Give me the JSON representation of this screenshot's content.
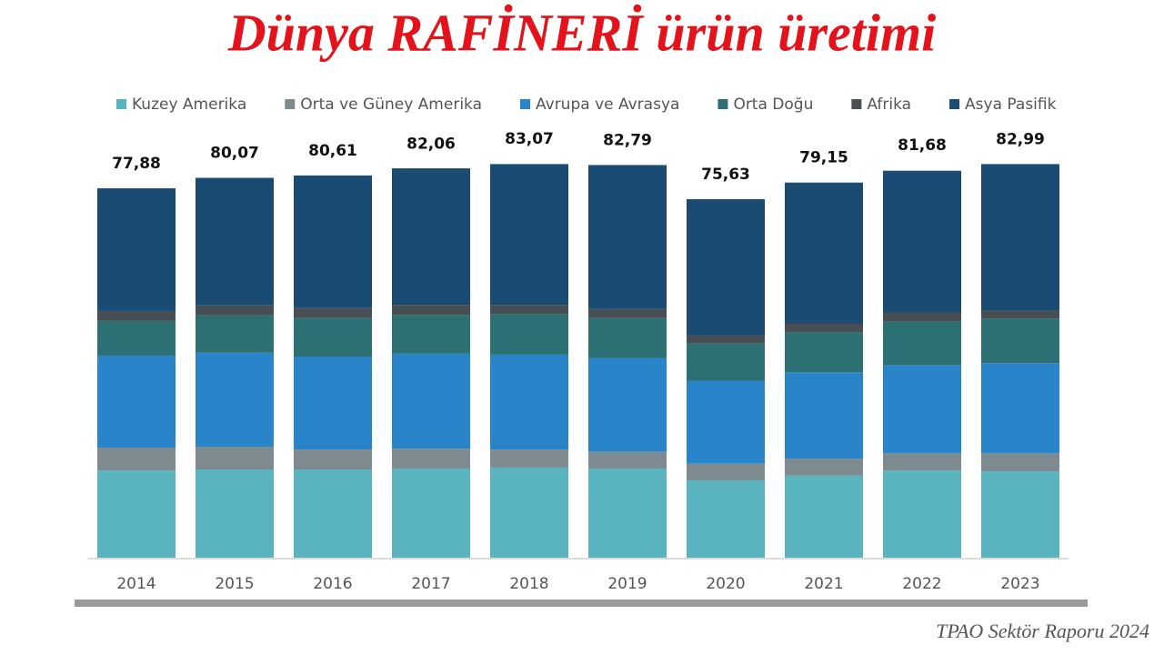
{
  "chart_data": {
    "type": "stacked-bar",
    "title": "Dünya RAFİNERİ ürün üretimi",
    "source": "TPAO Sektör Raporu 2024",
    "categories": [
      "2014",
      "2015",
      "2016",
      "2017",
      "2018",
      "2019",
      "2020",
      "2021",
      "2022",
      "2023"
    ],
    "series": [
      {
        "name": "Kuzey Amerika",
        "color": "#5ab4c0",
        "values": [
          18.4,
          18.6,
          18.6,
          18.8,
          19.0,
          18.8,
          16.3,
          17.3,
          18.4,
          18.2
        ]
      },
      {
        "name": "Orta ve Güney Amerika",
        "color": "#7d8b90",
        "values": [
          4.8,
          4.8,
          4.2,
          4.2,
          3.8,
          3.5,
          3.5,
          3.6,
          3.6,
          3.8
        ]
      },
      {
        "name": "Avrupa ve Avrasya",
        "color": "#2a84c9",
        "values": [
          19.4,
          19.8,
          19.6,
          20.0,
          20.0,
          19.8,
          17.5,
          18.2,
          18.6,
          19.0
        ]
      },
      {
        "name": "Orta Doğu",
        "color": "#2c7074",
        "values": [
          7.3,
          7.9,
          8.1,
          8.2,
          8.6,
          8.4,
          7.9,
          8.4,
          9.2,
          9.4
        ]
      },
      {
        "name": "Afrika",
        "color": "#474f55",
        "values": [
          2.1,
          2.1,
          2.1,
          2.1,
          1.9,
          1.9,
          1.7,
          1.9,
          1.9,
          1.7
        ]
      },
      {
        "name": "Asya Pasifik",
        "color": "#1a4c73",
        "values": [
          25.9,
          26.9,
          28.0,
          28.8,
          29.7,
          30.4,
          28.7,
          29.7,
          29.9,
          30.9
        ]
      }
    ],
    "totals": {
      "values": [
        77.88,
        80.07,
        80.61,
        82.06,
        83.07,
        82.79,
        75.63,
        79.15,
        81.68,
        82.99
      ],
      "value_labels": [
        "77,88",
        "80,07",
        "80,61",
        "82,06",
        "83,07",
        "82,79",
        "75,63",
        "79,15",
        "81,68",
        "82,99"
      ]
    }
  }
}
